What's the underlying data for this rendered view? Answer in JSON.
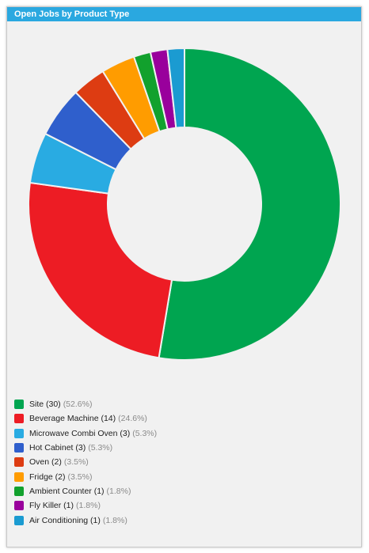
{
  "panel": {
    "title": "Open Jobs by Product Type"
  },
  "chart_data": {
    "type": "pie",
    "style": "donut",
    "title": "Open Jobs by Product Type",
    "legend_position": "bottom-left",
    "series": [
      {
        "label": "Site (30)",
        "pct": "(52.6%)",
        "value": 30,
        "color": "#00a550"
      },
      {
        "label": "Beverage Machine (14)",
        "pct": "(24.6%)",
        "value": 14,
        "color": "#ed1c24"
      },
      {
        "label": "Microwave Combi Oven (3)",
        "pct": "(5.3%)",
        "value": 3,
        "color": "#29abe2"
      },
      {
        "label": "Hot Cabinet (3)",
        "pct": "(5.3%)",
        "value": 3,
        "color": "#2f5fcc"
      },
      {
        "label": "Oven (2)",
        "pct": "(3.5%)",
        "value": 2,
        "color": "#dd3c12"
      },
      {
        "label": "Fridge (2)",
        "pct": "(3.5%)",
        "value": 2,
        "color": "#ff9c00"
      },
      {
        "label": "Ambient Counter (1)",
        "pct": "(1.8%)",
        "value": 1,
        "color": "#12a12d"
      },
      {
        "label": "Fly Killer (1)",
        "pct": "(1.8%)",
        "value": 1,
        "color": "#99009c"
      },
      {
        "label": "Air Conditioning (1)",
        "pct": "(1.8%)",
        "value": 1,
        "color": "#1b9bd1"
      }
    ]
  }
}
